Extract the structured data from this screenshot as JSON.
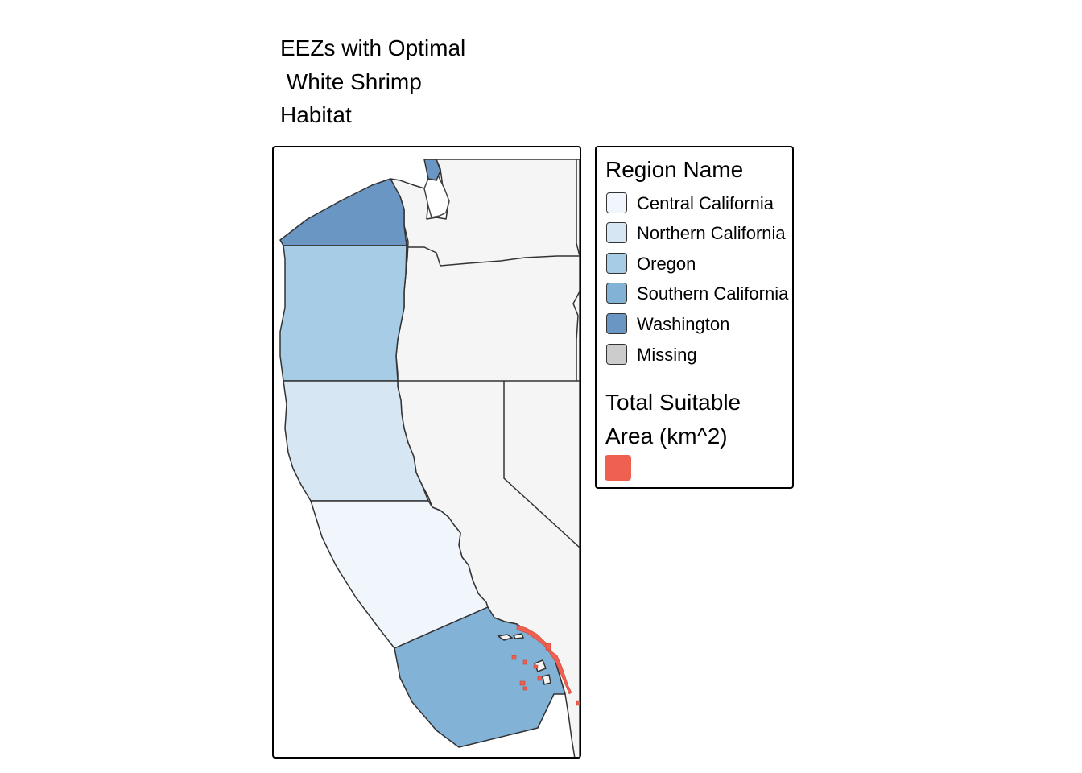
{
  "title": {
    "line1": "EEZs with Optimal",
    "line2": " White Shrimp",
    "line3": "Habitat"
  },
  "legend": {
    "region_heading": "Region Name",
    "regions": [
      {
        "label": "Central California",
        "color": "#f1f6fc"
      },
      {
        "label": "Northern California",
        "color": "#d6e6f2"
      },
      {
        "label": "Oregon",
        "color": "#a7cce5"
      },
      {
        "label": "Southern California",
        "color": "#82b3d7"
      },
      {
        "label": "Washington",
        "color": "#6996c3"
      },
      {
        "label": "Missing",
        "color": "#cccccc"
      }
    ],
    "area_heading_line1": "Total Suitable",
    "area_heading_line2": "Area (km^2)",
    "area_color": "#f06050"
  },
  "map": {
    "land_color": "#f5f5f5",
    "border_color": "#333333",
    "suitable_habitat_color": "#f06050"
  }
}
